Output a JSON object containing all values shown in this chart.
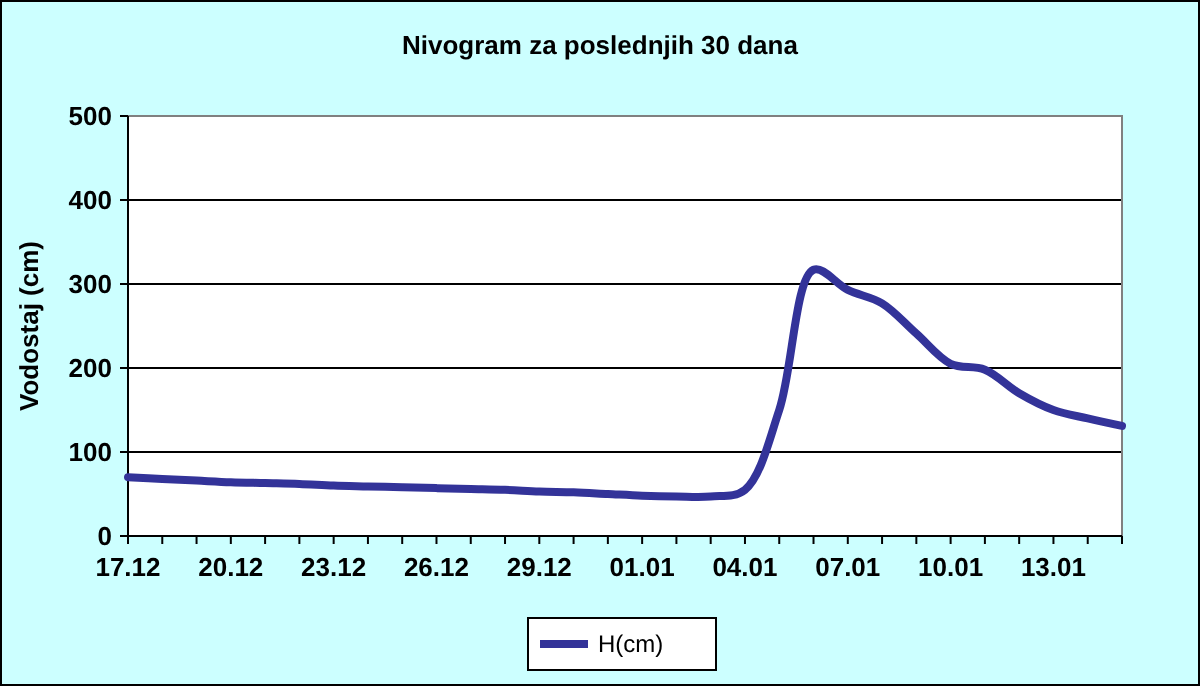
{
  "chart_data": {
    "type": "line",
    "title": "Nivogram za poslednjih 30 dana",
    "ylabel": "Vodostaj (cm)",
    "categories": [
      "17.12",
      null,
      null,
      "20.12",
      null,
      null,
      "23.12",
      null,
      null,
      "26.12",
      null,
      null,
      "29.12",
      null,
      null,
      "01.01",
      null,
      null,
      "04.01",
      null,
      null,
      "07.01",
      null,
      null,
      "10.01",
      null,
      null,
      "13.01",
      null,
      null
    ],
    "series": [
      {
        "name": "H(cm)",
        "color": "#333399",
        "values": [
          70,
          68,
          66,
          64,
          63,
          62,
          60,
          59,
          58,
          57,
          56,
          55,
          53,
          52,
          50,
          48,
          47,
          47,
          55,
          150,
          317,
          293,
          277,
          241,
          205,
          198,
          170,
          150,
          140,
          131
        ]
      }
    ],
    "ylim": [
      0,
      500
    ],
    "yticks": [
      0,
      100,
      200,
      300,
      400,
      500
    ],
    "grid": "y",
    "legend": "bottom",
    "marker": "none",
    "line_style": "solid"
  }
}
